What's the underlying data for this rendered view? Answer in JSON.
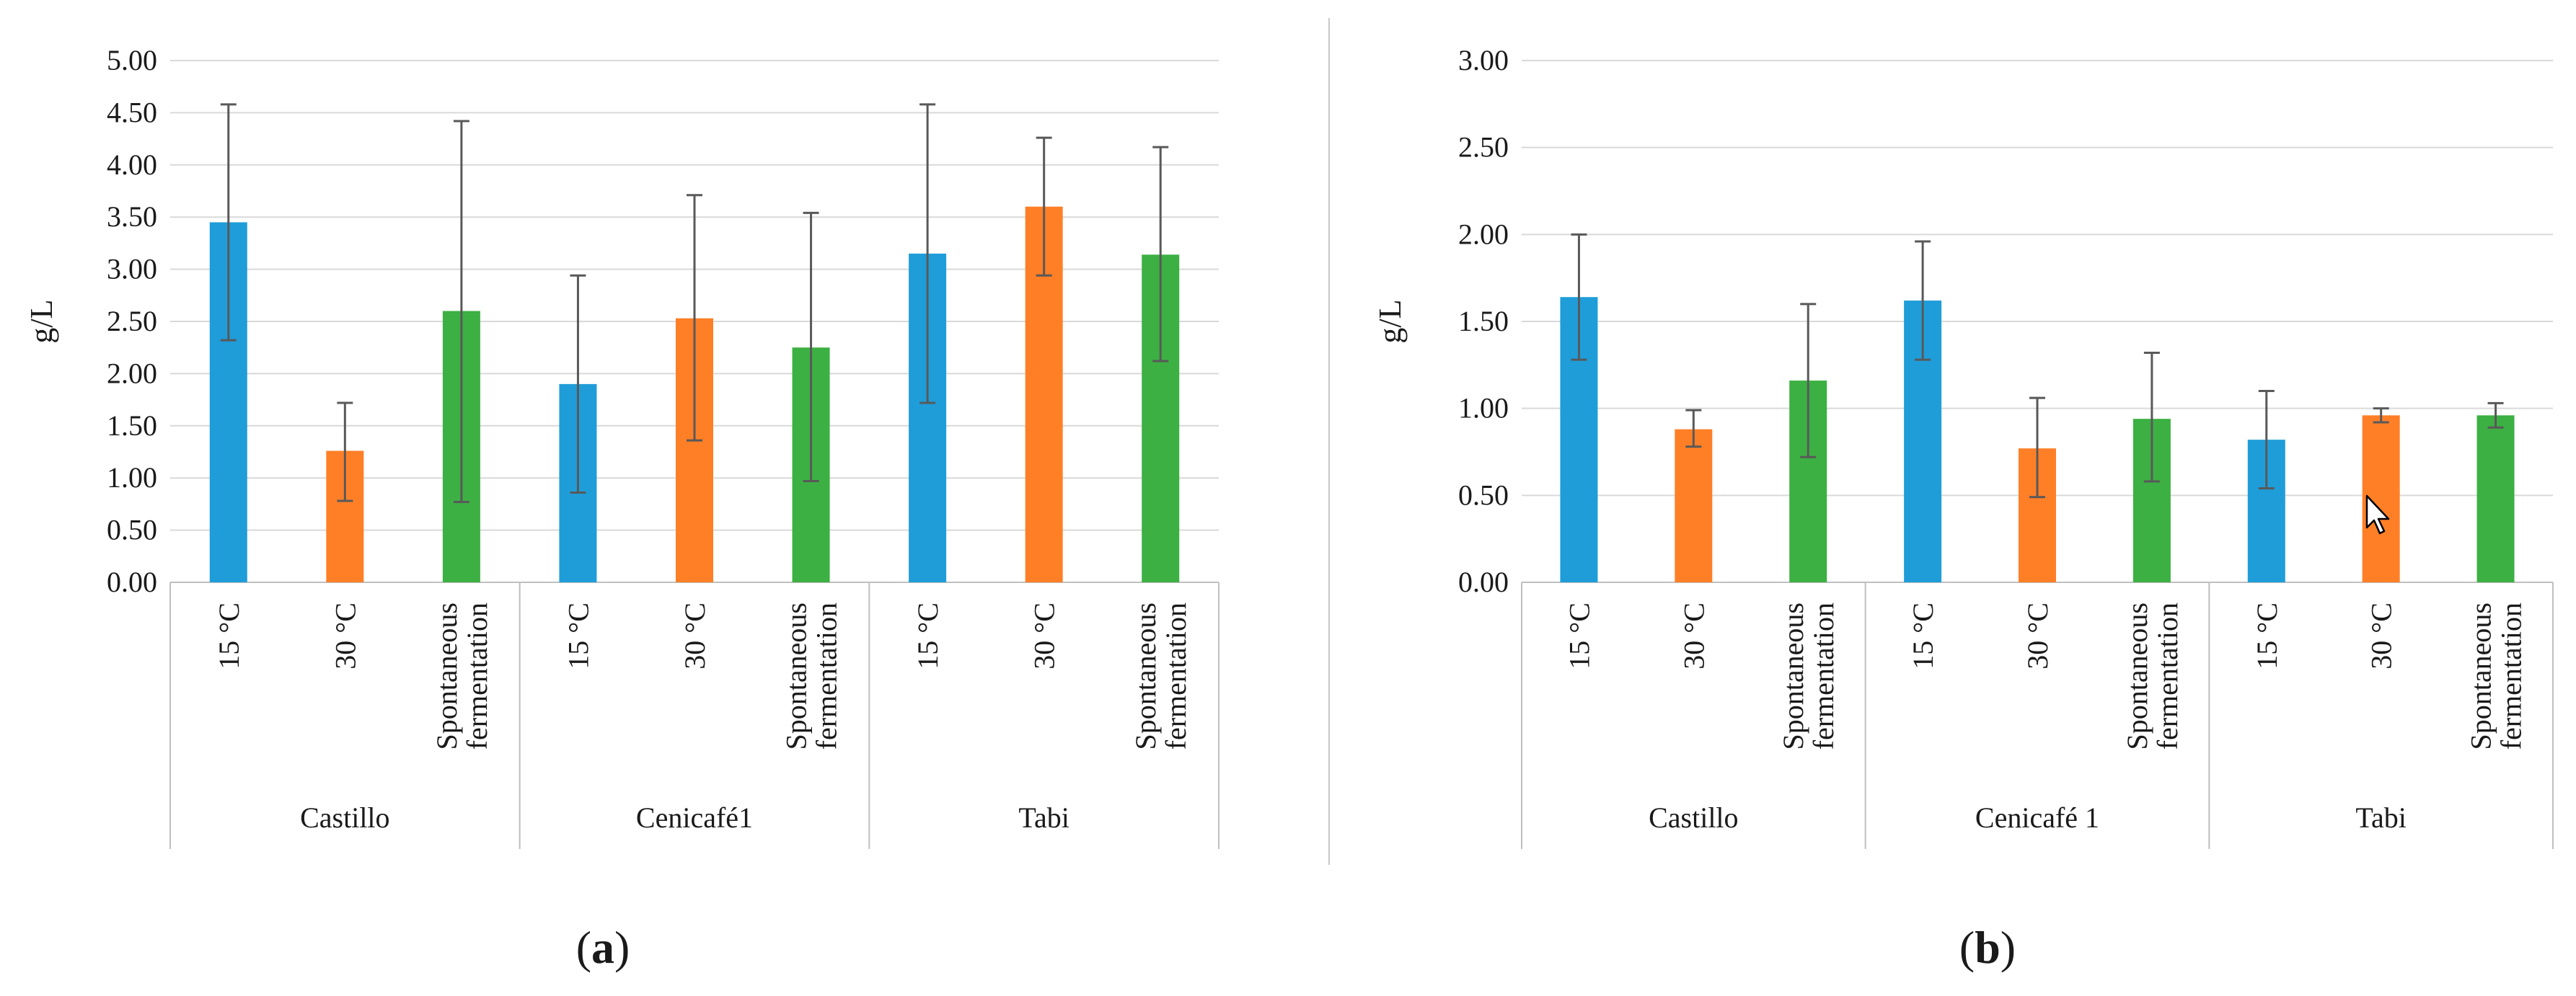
{
  "chart_data": [
    {
      "type": "bar",
      "panel_label": "a",
      "title": "",
      "xlabel": "",
      "ylabel": "g/L",
      "ylim": [
        0,
        5
      ],
      "yticks": [
        "0.00",
        "0.50",
        "1.00",
        "1.50",
        "2.00",
        "2.50",
        "3.00",
        "3.50",
        "4.00",
        "4.50",
        "5.00"
      ],
      "grid": true,
      "groups": [
        "Castillo",
        "Cenicafé1",
        "Tabi"
      ],
      "categories": [
        "15 °C",
        "30 °C",
        "Spontaneous fermentation"
      ],
      "category_colors": [
        "#1f9dd9",
        "#ff7f27",
        "#3cb043"
      ],
      "series": [
        {
          "name": "Castillo",
          "values": [
            3.45,
            1.26,
            2.6
          ],
          "err_low": [
            2.32,
            0.78,
            0.77
          ],
          "err_high": [
            4.58,
            1.72,
            4.42
          ]
        },
        {
          "name": "Cenicafé1",
          "values": [
            1.9,
            2.53,
            2.25
          ],
          "err_low": [
            0.86,
            1.36,
            0.97
          ],
          "err_high": [
            2.94,
            3.71,
            3.54
          ]
        },
        {
          "name": "Tabi",
          "values": [
            3.15,
            3.6,
            3.14
          ],
          "err_low": [
            1.72,
            2.94,
            2.12
          ],
          "err_high": [
            4.58,
            4.26,
            4.17
          ]
        }
      ]
    },
    {
      "type": "bar",
      "panel_label": "b",
      "title": "",
      "xlabel": "",
      "ylabel": "g/L",
      "ylim": [
        0,
        3
      ],
      "yticks": [
        "0.00",
        "0.50",
        "1.00",
        "1.50",
        "2.00",
        "2.50",
        "3.00"
      ],
      "grid": true,
      "groups": [
        "Castillo",
        "Cenicafé 1",
        "Tabi"
      ],
      "categories": [
        "15 °C",
        "30 °C",
        "Spontaneous fermentation"
      ],
      "category_colors": [
        "#1f9dd9",
        "#ff7f27",
        "#3cb043"
      ],
      "series": [
        {
          "name": "Castillo",
          "values": [
            1.64,
            0.88,
            1.16
          ],
          "err_low": [
            1.28,
            0.78,
            0.72
          ],
          "err_high": [
            2.0,
            0.99,
            1.6
          ]
        },
        {
          "name": "Cenicafé 1",
          "values": [
            1.62,
            0.77,
            0.94
          ],
          "err_low": [
            1.28,
            0.49,
            0.58
          ],
          "err_high": [
            1.96,
            1.06,
            1.32
          ]
        },
        {
          "name": "Tabi",
          "values": [
            0.82,
            0.96,
            0.96
          ],
          "err_low": [
            0.54,
            0.92,
            0.89
          ],
          "err_high": [
            1.1,
            1.0,
            1.03
          ]
        }
      ]
    }
  ]
}
